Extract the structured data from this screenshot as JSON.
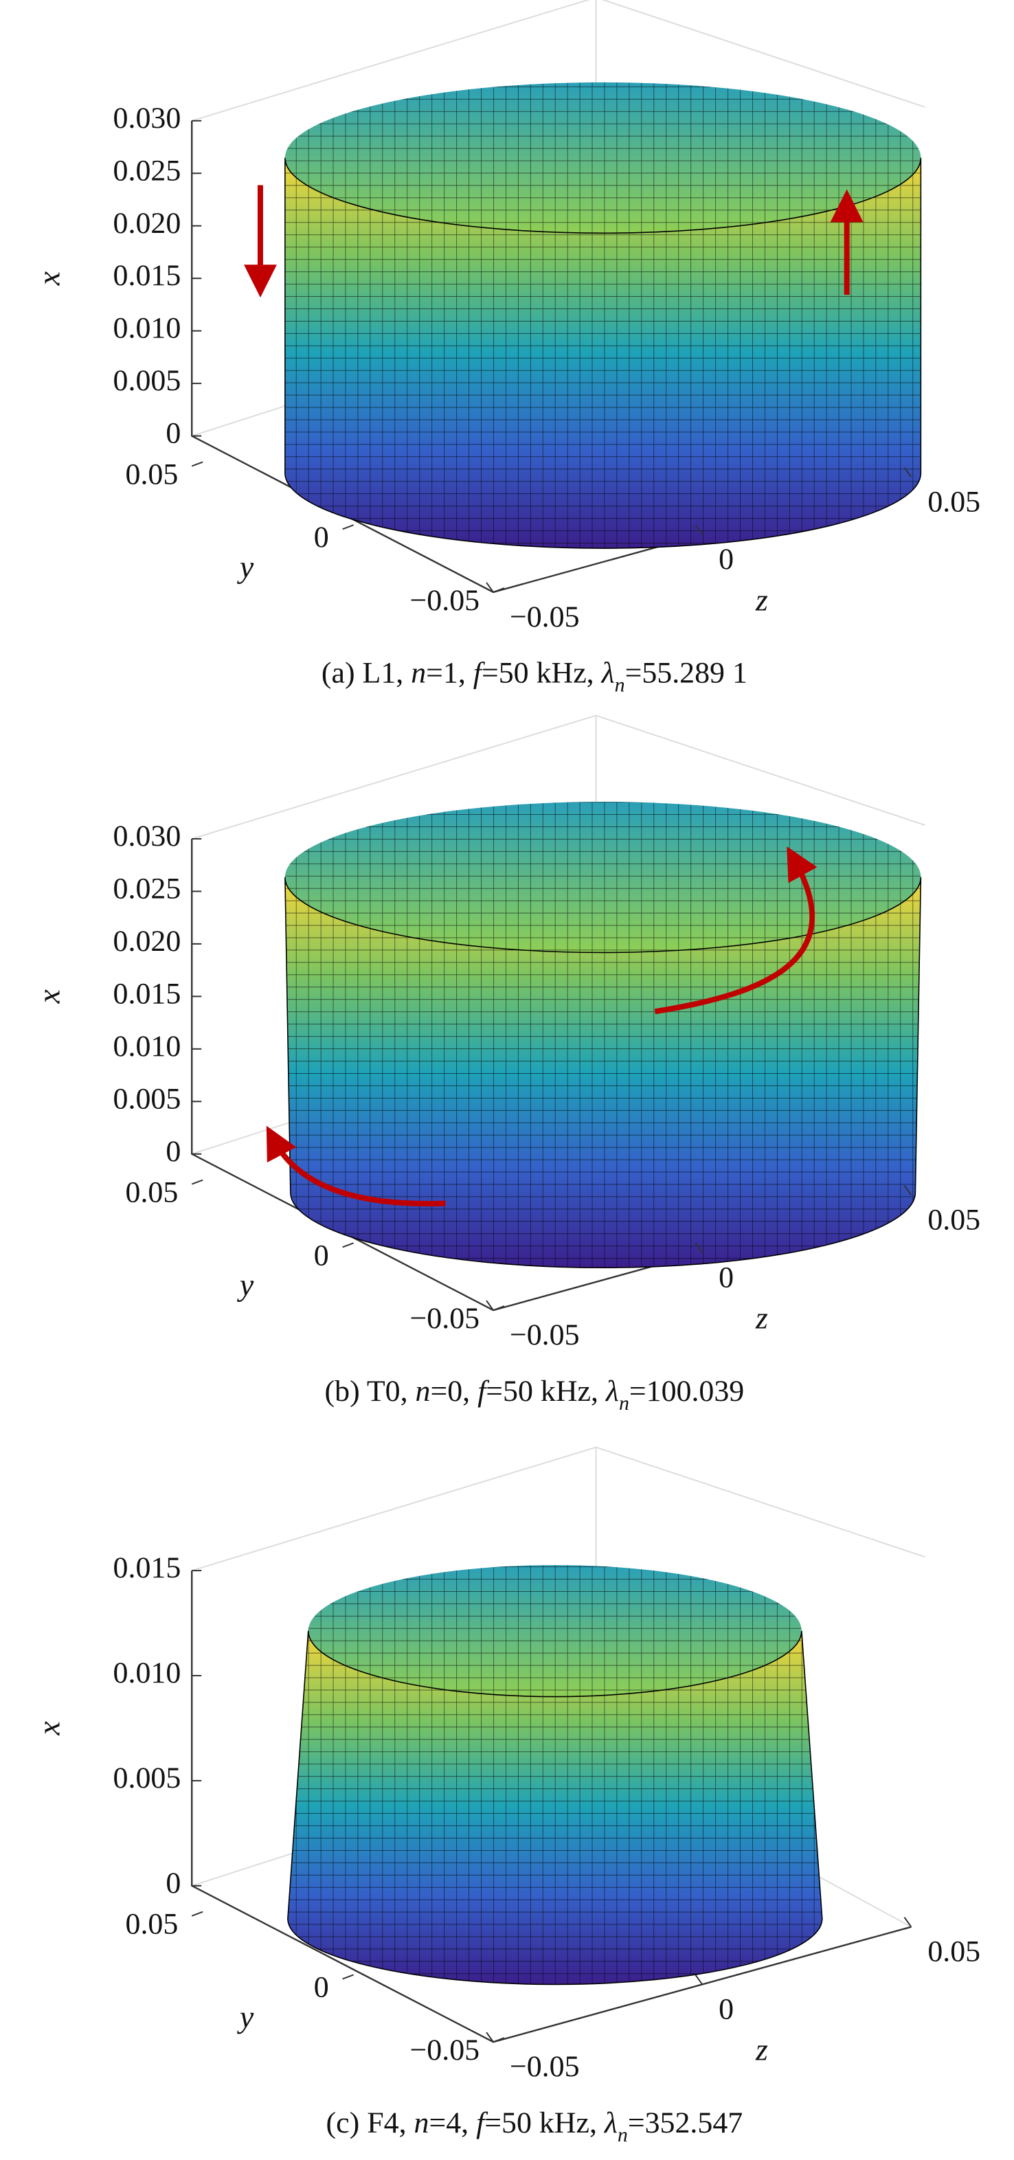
{
  "panels": [
    {
      "xticks": [
        0,
        0.005,
        {
          "value": 0.01,
          "label": "0.010"
        },
        0.015,
        {
          "value": 0.02,
          "label": "0.020"
        },
        0.025,
        {
          "value": 0.03,
          "label": "0.030"
        }
      ],
      "xlim": [
        0,
        0.03
      ],
      "ylim": [
        -0.05,
        0.05
      ],
      "zlim": [
        -0.05,
        0.05
      ],
      "yticks": [
        0.05,
        0,
        {
          "value": -0.05,
          "label": "−0.05"
        }
      ],
      "zticks": [
        {
          "value": -0.05,
          "label": "−0.05"
        },
        0,
        0.05
      ],
      "axis_labels": {
        "x": "x",
        "y": "y",
        "z": "z"
      },
      "caption": [
        {
          "text": "(a) L1, ",
          "style": "normal"
        },
        {
          "text": "n",
          "style": "italic"
        },
        {
          "text": "=1, ",
          "style": "normal"
        },
        {
          "text": "f",
          "style": "italic"
        },
        {
          "text": "=50 kHz, ",
          "style": "normal"
        },
        {
          "text": "λ",
          "style": "italic"
        },
        {
          "text": "n",
          "style": "sub"
        },
        {
          "text": "=55.289 1",
          "style": "normal"
        }
      ]
    },
    {
      "xticks": [
        0,
        0.005,
        {
          "value": 0.01,
          "label": "0.010"
        },
        0.015,
        {
          "value": 0.02,
          "label": "0.020"
        },
        0.025,
        {
          "value": 0.03,
          "label": "0.030"
        }
      ],
      "xlim": [
        0,
        0.03
      ],
      "ylim": [
        -0.05,
        0.05
      ],
      "zlim": [
        -0.05,
        0.05
      ],
      "yticks": [
        0.05,
        0,
        {
          "value": -0.05,
          "label": "−0.05"
        }
      ],
      "zticks": [
        {
          "value": -0.05,
          "label": "−0.05"
        },
        0,
        0.05
      ],
      "axis_labels": {
        "x": "x",
        "y": "y",
        "z": "z"
      },
      "caption": [
        {
          "text": "(b) T0, ",
          "style": "normal"
        },
        {
          "text": "n",
          "style": "italic"
        },
        {
          "text": "=0, ",
          "style": "normal"
        },
        {
          "text": "f",
          "style": "italic"
        },
        {
          "text": "=50 kHz, ",
          "style": "normal"
        },
        {
          "text": "λ",
          "style": "italic"
        },
        {
          "text": "n",
          "style": "sub"
        },
        {
          "text": "=100.039",
          "style": "normal"
        }
      ]
    },
    {
      "xticks": [
        0,
        0.005,
        {
          "value": 0.01,
          "label": "0.010"
        },
        0.015
      ],
      "xlim": [
        0,
        0.015
      ],
      "ylim": [
        -0.05,
        0.05
      ],
      "zlim": [
        -0.05,
        0.05
      ],
      "yticks": [
        0.05,
        0,
        {
          "value": -0.05,
          "label": "−0.05"
        }
      ],
      "zticks": [
        {
          "value": -0.05,
          "label": "−0.05"
        },
        0,
        0.05
      ],
      "axis_labels": {
        "x": "x",
        "y": "y",
        "z": "z"
      },
      "caption": [
        {
          "text": "(c) F4, ",
          "style": "normal"
        },
        {
          "text": "n",
          "style": "italic"
        },
        {
          "text": "=4, ",
          "style": "normal"
        },
        {
          "text": "f",
          "style": "italic"
        },
        {
          "text": "=50 kHz, ",
          "style": "normal"
        },
        {
          "text": "λ",
          "style": "italic"
        },
        {
          "text": "n",
          "style": "sub"
        },
        {
          "text": "=352.547",
          "style": "normal"
        }
      ]
    }
  ]
}
